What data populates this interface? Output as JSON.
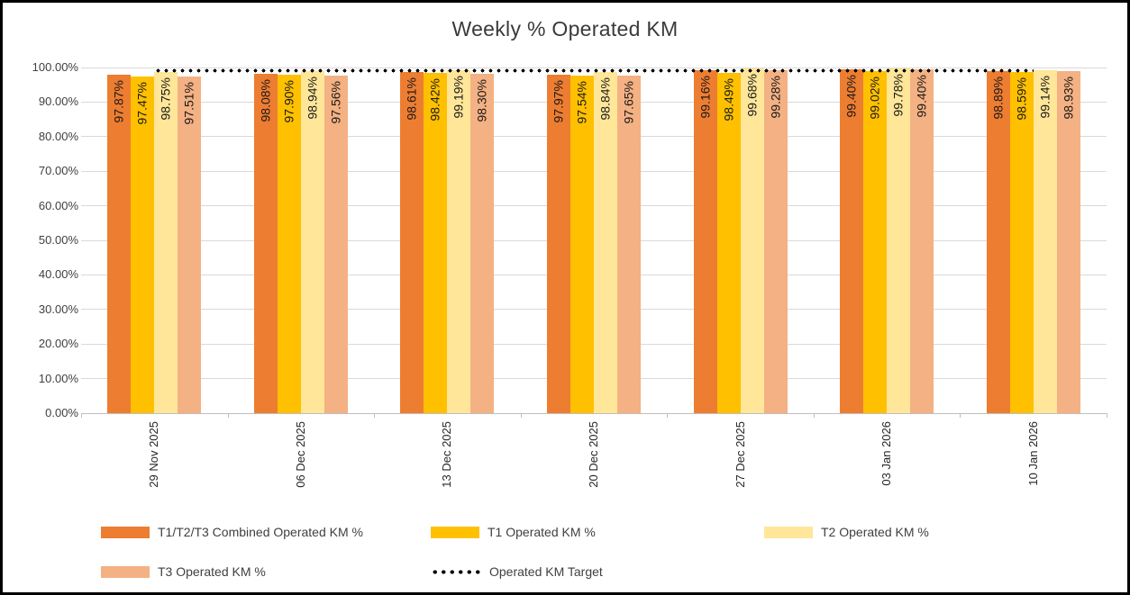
{
  "chart_data": {
    "type": "bar",
    "title": "Weekly % Operated KM",
    "xlabel": "",
    "ylabel": "",
    "ylim": [
      0,
      100
    ],
    "grid": true,
    "legend_position": "bottom",
    "y_ticks": [
      "100.00%",
      "90.00%",
      "80.00%",
      "70.00%",
      "60.00%",
      "50.00%",
      "40.00%",
      "30.00%",
      "20.00%",
      "10.00%",
      "0.00%"
    ],
    "categories": [
      "29 Nov 2025",
      "06 Dec 2025",
      "13 Dec 2025",
      "20 Dec 2025",
      "27 Dec 2025",
      "03 Jan 2026",
      "10 Jan 2026"
    ],
    "series": [
      {
        "name": "T1/T2/T3 Combined Operated KM %",
        "color": "#ED7D31",
        "values": [
          97.87,
          98.08,
          98.61,
          97.97,
          99.16,
          99.4,
          98.89
        ],
        "labels": [
          "97.87%",
          "98.08%",
          "98.61%",
          "97.97%",
          "99.16%",
          "99.40%",
          "98.89%"
        ]
      },
      {
        "name": "T1 Operated KM %",
        "color": "#FFC000",
        "values": [
          97.47,
          97.9,
          98.42,
          97.54,
          98.49,
          99.02,
          98.59
        ],
        "labels": [
          "97.47%",
          "97.90%",
          "98.42%",
          "97.54%",
          "98.49%",
          "99.02%",
          "98.59%"
        ]
      },
      {
        "name": "T2 Operated KM %",
        "color": "#FFE699",
        "values": [
          98.75,
          98.94,
          99.19,
          98.84,
          99.68,
          99.78,
          99.14
        ],
        "labels": [
          "98.75%",
          "98.94%",
          "99.19%",
          "98.84%",
          "99.68%",
          "99.78%",
          "99.14%"
        ]
      },
      {
        "name": "T3 Operated KM %",
        "color": "#F4B183",
        "values": [
          97.51,
          97.56,
          98.3,
          97.65,
          99.28,
          99.4,
          98.93
        ],
        "labels": [
          "97.51%",
          "97.56%",
          "98.30%",
          "97.65%",
          "99.28%",
          "99.40%",
          "98.93%"
        ]
      }
    ],
    "target_line": {
      "name": "Operated KM Target",
      "value": 99.0,
      "color": "#000000",
      "style": "dotted"
    }
  }
}
